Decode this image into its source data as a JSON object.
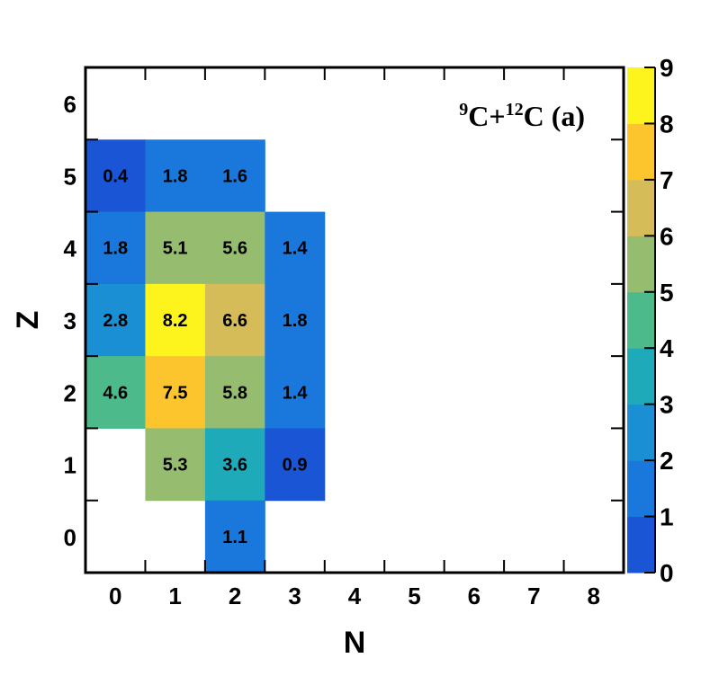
{
  "chart_data": {
    "type": "heatmap",
    "title": {
      "sup1": "9",
      "part1": "C+",
      "sup2": "12",
      "part2": "C (a)"
    },
    "xlabel": "N",
    "ylabel": "Z",
    "x_ticks": [
      "0",
      "1",
      "2",
      "3",
      "4",
      "5",
      "6",
      "7",
      "8"
    ],
    "y_ticks": [
      "0",
      "1",
      "2",
      "3",
      "4",
      "5",
      "6"
    ],
    "colorbar_ticks": [
      "0",
      "1",
      "2",
      "3",
      "4",
      "5",
      "6",
      "7",
      "8",
      "9"
    ],
    "zlim": [
      0,
      9
    ],
    "palette": [
      "#1a55d6",
      "#1a78dc",
      "#1a8fd4",
      "#1eaab8",
      "#4dba8c",
      "#96bc70",
      "#d6bc58",
      "#fcc52e",
      "#fcf41c"
    ],
    "cells": [
      {
        "n": 0,
        "z": 5,
        "value": 0.4,
        "label": "0.4"
      },
      {
        "n": 1,
        "z": 5,
        "value": 1.8,
        "label": "1.8"
      },
      {
        "n": 2,
        "z": 5,
        "value": 1.6,
        "label": "1.6"
      },
      {
        "n": 0,
        "z": 4,
        "value": 1.8,
        "label": "1.8"
      },
      {
        "n": 1,
        "z": 4,
        "value": 5.1,
        "label": "5.1"
      },
      {
        "n": 2,
        "z": 4,
        "value": 5.6,
        "label": "5.6"
      },
      {
        "n": 3,
        "z": 4,
        "value": 1.4,
        "label": "1.4"
      },
      {
        "n": 0,
        "z": 3,
        "value": 2.8,
        "label": "2.8"
      },
      {
        "n": 1,
        "z": 3,
        "value": 8.2,
        "label": "8.2"
      },
      {
        "n": 2,
        "z": 3,
        "value": 6.6,
        "label": "6.6"
      },
      {
        "n": 3,
        "z": 3,
        "value": 1.8,
        "label": "1.8"
      },
      {
        "n": 0,
        "z": 2,
        "value": 4.6,
        "label": "4.6"
      },
      {
        "n": 1,
        "z": 2,
        "value": 7.5,
        "label": "7.5"
      },
      {
        "n": 2,
        "z": 2,
        "value": 5.8,
        "label": "5.8"
      },
      {
        "n": 3,
        "z": 2,
        "value": 1.4,
        "label": "1.4"
      },
      {
        "n": 1,
        "z": 1,
        "value": 5.3,
        "label": "5.3"
      },
      {
        "n": 2,
        "z": 1,
        "value": 3.6,
        "label": "3.6"
      },
      {
        "n": 3,
        "z": 1,
        "value": 0.9,
        "label": "0.9"
      },
      {
        "n": 2,
        "z": 0,
        "value": 1.1,
        "label": "1.1"
      }
    ]
  }
}
